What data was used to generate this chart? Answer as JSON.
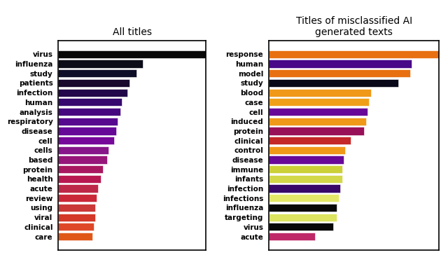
{
  "left_title": "All titles",
  "right_title": "Titles of misclassified AI\ngenerated texts",
  "left_labels": [
    "virus",
    "influenza",
    "study",
    "patients",
    "infection",
    "human",
    "analysis",
    "respiratory",
    "disease",
    "cell",
    "cells",
    "based",
    "protein",
    "health",
    "acute",
    "review",
    "using",
    "viral",
    "clinical",
    "care"
  ],
  "left_values": [
    100,
    57,
    53,
    48,
    47,
    43,
    42,
    40,
    39,
    38,
    34,
    33,
    30,
    29,
    27,
    26,
    25,
    25,
    24,
    23
  ],
  "left_colors": [
    "#080808",
    "#0c0c18",
    "#0e0e28",
    "#18082e",
    "#22084a",
    "#36086e",
    "#46087e",
    "#56088e",
    "#660898",
    "#76089a",
    "#86168a",
    "#96167a",
    "#a81860",
    "#b81850",
    "#be2848",
    "#ca2838",
    "#ca3838",
    "#d43828",
    "#de4828",
    "#e05818"
  ],
  "right_labels": [
    "response",
    "human",
    "model",
    "study",
    "blood",
    "case",
    "cell",
    "induced",
    "protein",
    "clinical",
    "control",
    "disease",
    "immune",
    "infants",
    "infection",
    "infections",
    "influenza",
    "targeting",
    "virus",
    "acute"
  ],
  "right_values": [
    100,
    84,
    83,
    76,
    60,
    59,
    58,
    57,
    56,
    48,
    45,
    44,
    43,
    43,
    42,
    41,
    40,
    40,
    38,
    27
  ],
  "right_colors": [
    "#e87010",
    "#480888",
    "#e87010",
    "#080818",
    "#f09818",
    "#f0a018",
    "#680898",
    "#f09818",
    "#981058",
    "#c42828",
    "#f09818",
    "#680898",
    "#ccd038",
    "#d2d848",
    "#380868",
    "#e4e868",
    "#080808",
    "#dce460",
    "#080808",
    "#be2868"
  ]
}
